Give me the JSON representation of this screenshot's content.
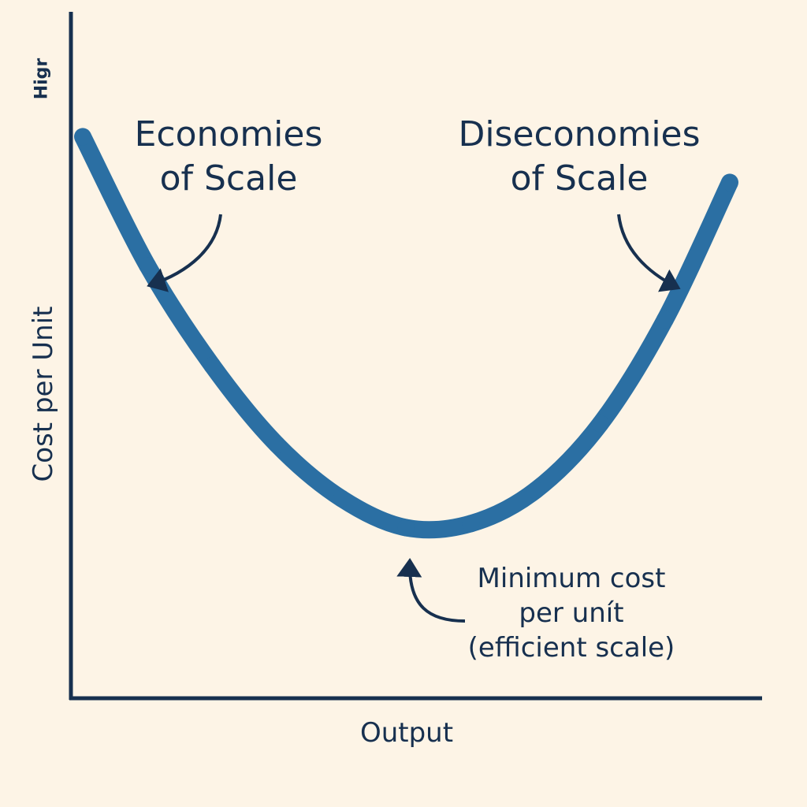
{
  "chart_data": {
    "type": "line",
    "xlabel": "Output",
    "ylabel": "Cost per Unit",
    "y_tick_high": "Higr",
    "grid": false,
    "legend": "none",
    "x": [
      0,
      10,
      20,
      30,
      40,
      50,
      60,
      70,
      80,
      90,
      100
    ],
    "series": [
      {
        "values": [
          100,
          69,
          45,
          26,
          13,
          6,
          7,
          15,
          31,
          56,
          89
        ]
      }
    ],
    "xlim": [
      0,
      100
    ],
    "ylim": [
      -35,
      130
    ],
    "annotations": [
      {
        "id": "economies",
        "text_lines": [
          "Economies",
          "of Scale"
        ]
      },
      {
        "id": "diseconomies",
        "text_lines": [
          "Diseconomies",
          "of Scale"
        ]
      },
      {
        "id": "minimum",
        "text_lines": [
          "Minimum cost",
          "per unít",
          "(efficient scale)"
        ]
      }
    ]
  },
  "colors": {
    "background": "#fdf4e6",
    "curve": "#2b6fa3",
    "ink": "#17304f"
  }
}
